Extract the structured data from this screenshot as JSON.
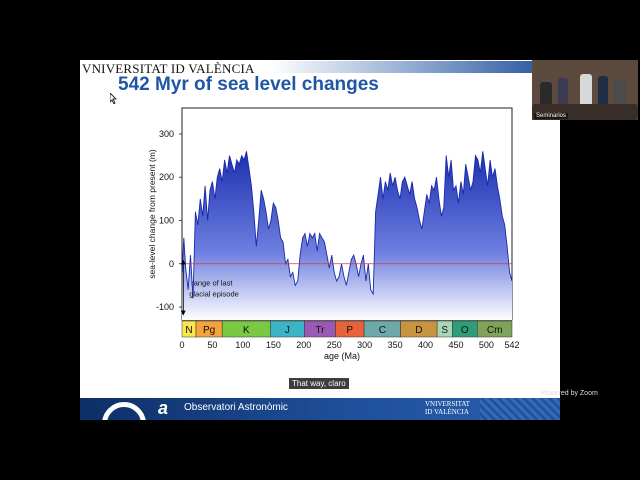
{
  "slide": {
    "logo_text": "VNIVERSITAT  ID  VALÈNCIA",
    "title": "542 Myr of sea level changes",
    "footer_label": "Observatori Astronòmic",
    "footer_logo": "VNIVERSITAT\nID VALÈNCIA"
  },
  "chart_data": {
    "type": "area",
    "xlabel": "age (Ma)",
    "ylabel": "sea-level change from present (m)",
    "xlim": [
      0,
      542
    ],
    "ylim": [
      -130,
      360
    ],
    "x_ticks": [
      0,
      50,
      100,
      150,
      200,
      250,
      300,
      350,
      400,
      450,
      500,
      542
    ],
    "y_ticks": [
      -100,
      0,
      100,
      200,
      300
    ],
    "annotation": "range of last glacial episode",
    "periods": [
      {
        "label": "N",
        "start": 0,
        "end": 23,
        "color": "#f9e64a"
      },
      {
        "label": "Pg",
        "start": 23,
        "end": 66,
        "color": "#f5a33c"
      },
      {
        "label": "K",
        "start": 66,
        "end": 145,
        "color": "#7ac943"
      },
      {
        "label": "J",
        "start": 145,
        "end": 201,
        "color": "#3bb4c6"
      },
      {
        "label": "Tr",
        "start": 201,
        "end": 252,
        "color": "#9b59b6"
      },
      {
        "label": "P",
        "start": 252,
        "end": 299,
        "color": "#e8623a"
      },
      {
        "label": "C",
        "start": 299,
        "end": 359,
        "color": "#6fa8a8"
      },
      {
        "label": "D",
        "start": 359,
        "end": 419,
        "color": "#c9943f"
      },
      {
        "label": "S",
        "start": 419,
        "end": 444,
        "color": "#a9d6b8"
      },
      {
        "label": "O",
        "start": 444,
        "end": 485,
        "color": "#2e9e7a"
      },
      {
        "label": "Cm",
        "start": 485,
        "end": 542,
        "color": "#7fa35a"
      }
    ],
    "series": [
      {
        "x": [
          0,
          3,
          6,
          10,
          14,
          18,
          22,
          26,
          30,
          34,
          38,
          42,
          46,
          50,
          54,
          58,
          62,
          66,
          70,
          74,
          78,
          82,
          86,
          90,
          94,
          98,
          102,
          106,
          110,
          114,
          118,
          122,
          126,
          130,
          134,
          138,
          142,
          146,
          150,
          154,
          158,
          162,
          166,
          170,
          174,
          178,
          182,
          186,
          190,
          194,
          198,
          202,
          206,
          210,
          214,
          218,
          222,
          226,
          230,
          234,
          238,
          242,
          246,
          250,
          254,
          258,
          262,
          266,
          270,
          274,
          278,
          282,
          286,
          290,
          294,
          298,
          302,
          306,
          310,
          314,
          318,
          322,
          326,
          330,
          334,
          338,
          342,
          346,
          350,
          354,
          358,
          362,
          366,
          370,
          374,
          378,
          382,
          386,
          390,
          394,
          398,
          402,
          406,
          410,
          414,
          418,
          422,
          426,
          430,
          434,
          438,
          442,
          446,
          450,
          454,
          458,
          462,
          466,
          470,
          474,
          478,
          482,
          486,
          490,
          494,
          498,
          502,
          506,
          510,
          514,
          518,
          522,
          526,
          530,
          534,
          538,
          542
        ],
        "values": [
          -20,
          60,
          -10,
          -60,
          20,
          -80,
          120,
          90,
          150,
          110,
          180,
          100,
          170,
          190,
          150,
          200,
          220,
          190,
          240,
          210,
          250,
          230,
          210,
          240,
          230,
          250,
          240,
          260,
          220,
          180,
          120,
          40,
          100,
          170,
          150,
          120,
          80,
          100,
          140,
          130,
          100,
          60,
          50,
          0,
          10,
          -30,
          -20,
          -50,
          -40,
          20,
          60,
          70,
          40,
          70,
          60,
          70,
          30,
          70,
          60,
          50,
          20,
          -10,
          20,
          -20,
          -40,
          -30,
          0,
          -30,
          -50,
          -20,
          10,
          20,
          0,
          -30,
          0,
          20,
          -40,
          0,
          -60,
          -70,
          120,
          160,
          200,
          150,
          190,
          170,
          210,
          180,
          200,
          170,
          150,
          190,
          200,
          180,
          160,
          190,
          150,
          130,
          100,
          80,
          120,
          160,
          140,
          180,
          170,
          200,
          150,
          110,
          130,
          250,
          200,
          240,
          170,
          180,
          140,
          190,
          160,
          230,
          200,
          170,
          190,
          250,
          240,
          210,
          260,
          220,
          180,
          240,
          200,
          220,
          180,
          150,
          110,
          90,
          40,
          -20,
          -40
        ]
      }
    ]
  },
  "overlay": {
    "subtitle": "That way, claro",
    "watermark": "Powered by Zoom",
    "video_name": "Seminarios"
  }
}
